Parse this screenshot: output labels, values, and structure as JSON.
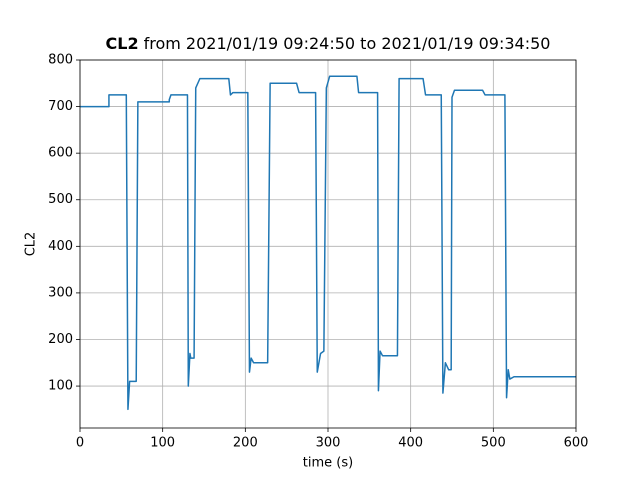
{
  "chart_data": {
    "type": "line",
    "title": {
      "bold": "CL2",
      "rest": "from 2021/01/19 09:24:50 to 2021/01/19 09:34:50"
    },
    "x_label": "time (s)",
    "y_label": "CL2",
    "xlim": [
      0,
      600
    ],
    "ylim": [
      10,
      800
    ],
    "xticks": [
      0,
      100,
      200,
      300,
      400,
      500,
      600
    ],
    "yticks": [
      100,
      200,
      300,
      400,
      500,
      600,
      700,
      800
    ],
    "grid": true,
    "series": [
      {
        "color": "#1f77b4",
        "x": [
          0,
          35,
          35,
          56,
          58,
          60,
          68,
          70,
          108,
          108,
          110,
          130,
          131,
          133,
          134,
          138,
          140,
          145,
          180,
          182,
          185,
          203,
          205,
          207,
          210,
          227,
          230,
          262,
          265,
          285,
          287,
          291,
          295,
          298,
          302,
          335,
          337,
          360,
          361,
          363,
          366,
          384,
          386,
          415,
          418,
          437,
          439,
          442,
          446,
          449,
          450,
          453,
          487,
          490,
          514,
          516,
          518,
          520,
          525,
          600
        ],
        "values": [
          700,
          700,
          725,
          725,
          50,
          110,
          110,
          710,
          710,
          715,
          725,
          725,
          100,
          170,
          160,
          160,
          740,
          760,
          760,
          725,
          730,
          730,
          130,
          160,
          150,
          150,
          750,
          750,
          730,
          730,
          130,
          170,
          175,
          740,
          765,
          765,
          730,
          730,
          90,
          175,
          165,
          165,
          760,
          760,
          725,
          725,
          85,
          150,
          135,
          135,
          720,
          735,
          735,
          725,
          725,
          75,
          135,
          115,
          120,
          120
        ]
      }
    ]
  }
}
